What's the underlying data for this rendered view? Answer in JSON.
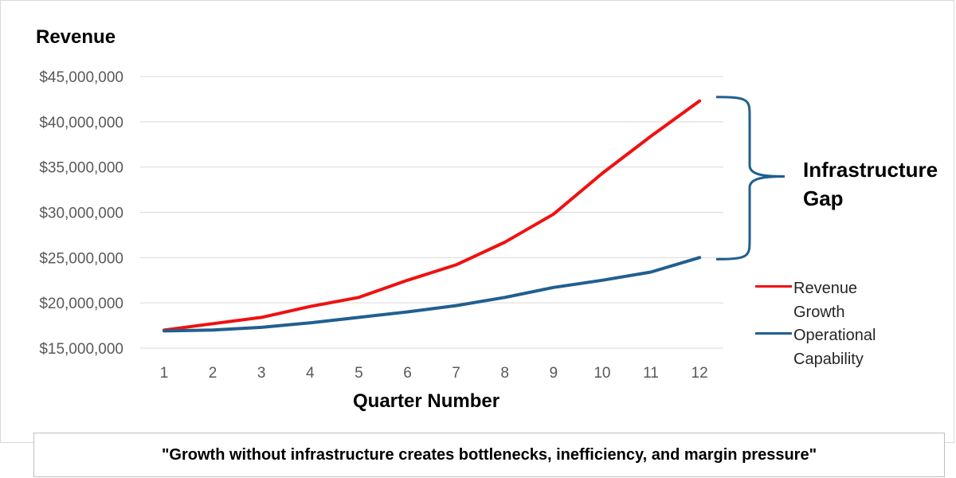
{
  "chart_data": {
    "type": "line",
    "ylabel": "Revenue",
    "xlabel": "Quarter Number",
    "x": [
      1,
      2,
      3,
      4,
      5,
      6,
      7,
      8,
      9,
      10,
      11,
      12
    ],
    "y_ticks": [
      "$15,000,000",
      "$20,000,000",
      "$25,000,000",
      "$30,000,000",
      "$35,000,000",
      "$40,000,000",
      "$45,000,000"
    ],
    "ylim": [
      15000000,
      45000000
    ],
    "grid": true,
    "legend_position": "right",
    "series": [
      {
        "name": "Revenue Growth",
        "color": "#ee1111",
        "values": [
          17000000,
          17700000,
          18400000,
          19600000,
          20600000,
          22500000,
          24200000,
          26700000,
          29800000,
          34300000,
          38400000,
          42300000
        ]
      },
      {
        "name": "Operational Capability",
        "color": "#215f8f",
        "values": [
          16900000,
          17000000,
          17300000,
          17800000,
          18400000,
          19000000,
          19700000,
          20600000,
          21700000,
          22500000,
          23400000,
          25000000
        ]
      }
    ],
    "annotation": {
      "label": "Infrastructure Gap",
      "color": "#215f8f"
    }
  },
  "quote": "\"Growth without infrastructure creates bottlenecks, inefficiency, and margin pressure\""
}
